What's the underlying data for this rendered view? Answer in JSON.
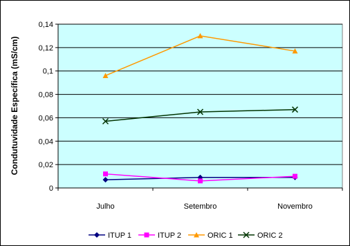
{
  "chart_data": {
    "type": "line",
    "title": "",
    "xlabel": "",
    "ylabel": "Condutuvidade Específica (mS/cm)",
    "categories": [
      "Julho",
      "Setembro",
      "Novembro"
    ],
    "ylim": [
      0,
      0.14
    ],
    "yticks": [
      0,
      0.02,
      0.04,
      0.06,
      0.08,
      0.1,
      0.12,
      0.14
    ],
    "ytick_labels": [
      "0",
      "0,02",
      "0,04",
      "0,06",
      "0,08",
      "0,1",
      "0,12",
      "0,14"
    ],
    "grid": true,
    "legend": "bottom",
    "plot_background": "#ccffff",
    "series": [
      {
        "name": "ITUP 1",
        "values": [
          0.007,
          0.009,
          0.009
        ],
        "color": "#000080",
        "marker": "diamond"
      },
      {
        "name": "ITUP 2",
        "values": [
          0.012,
          0.006,
          0.01
        ],
        "color": "#ff00ff",
        "marker": "square"
      },
      {
        "name": "ORIC 1",
        "values": [
          0.096,
          0.13,
          0.117
        ],
        "color": "#ff9900",
        "marker": "triangle"
      },
      {
        "name": "ORIC 2",
        "values": [
          0.057,
          0.065,
          0.067
        ],
        "color": "#003300",
        "marker": "x"
      }
    ]
  }
}
